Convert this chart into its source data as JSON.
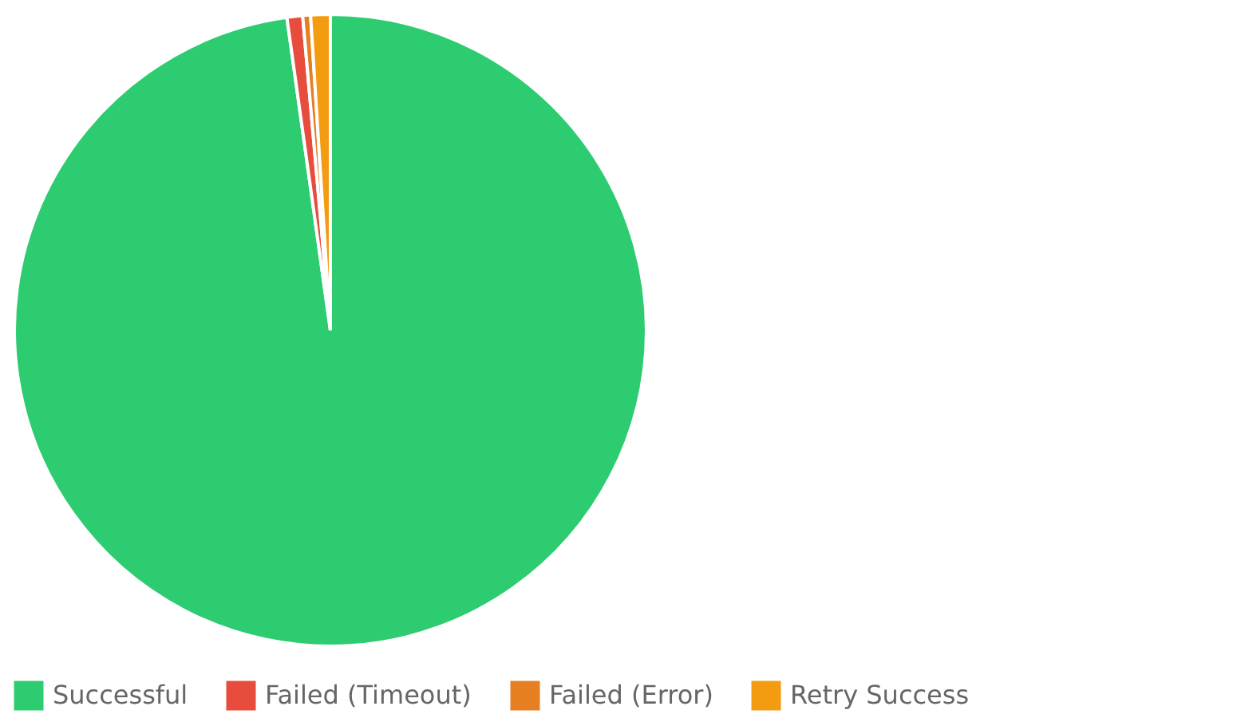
{
  "chart_data": {
    "type": "pie",
    "categories": [
      "Successful",
      "Failed (Timeout)",
      "Failed (Error)",
      "Retry Success"
    ],
    "values": [
      97.8,
      0.8,
      0.4,
      1.0
    ],
    "colors": [
      "#2ecc71",
      "#e74c3c",
      "#e67e22",
      "#f39c12"
    ],
    "legend": "bottom"
  }
}
